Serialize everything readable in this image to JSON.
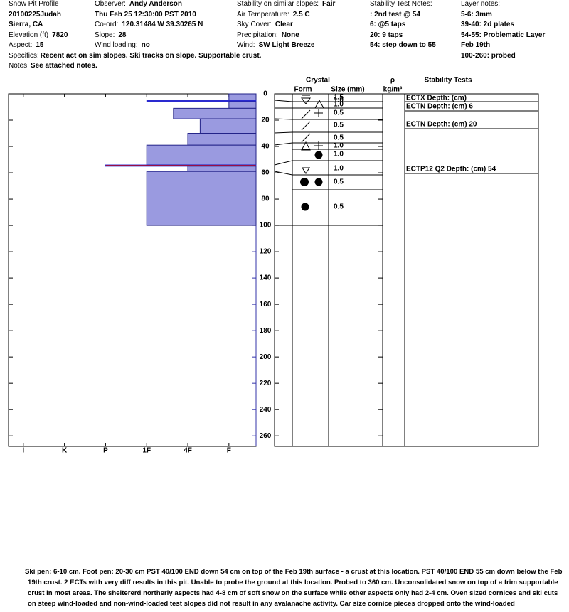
{
  "header": {
    "columns": [
      [
        {
          "label": "Snow Pit Profile"
        },
        {
          "value": "20100225Judah"
        },
        {
          "value": "Sierra, CA"
        },
        {
          "label": "Elevation (ft)",
          "value": "7820"
        },
        {
          "label": "Aspect:",
          "value": "15"
        }
      ],
      [
        {
          "label": "Observer:",
          "value": "Andy Anderson"
        },
        {
          "value": "Thu Feb 25 12:30:00 PST 2010"
        },
        {
          "label": "Co-ord:",
          "value": "120.31484 W 39.30265 N"
        },
        {
          "label": "Slope:",
          "value": "28"
        },
        {
          "label": "Wind loading:",
          "value": "no"
        }
      ],
      [
        {
          "label": "Stability on similar slopes:",
          "value": "Fair"
        },
        {
          "label": "Air Temperature:",
          "value": "2.5 C"
        },
        {
          "label": "Sky Cover:",
          "value": "Clear"
        },
        {
          "label": "Precipitation:",
          "value": "None"
        },
        {
          "label": "Wind:",
          "value": "SW Light Breeze"
        }
      ],
      [
        {
          "label": "Stability Test Notes:"
        },
        {
          "value": ": 2nd test @ 54"
        },
        {
          "value": "6: @5 taps"
        },
        {
          "value": "20: 9 taps"
        },
        {
          "value": "54: step down to 55"
        }
      ],
      [
        {
          "label": "Layer notes:"
        },
        {
          "value": "5-6: 3mm"
        },
        {
          "value": "39-40: 2d plates"
        },
        {
          "value": "54-55: Problematic Layer"
        },
        {
          "value": "Feb 19th"
        },
        {
          "value": "100-260: probed"
        }
      ]
    ],
    "specifics": {
      "label": "Specifics:",
      "value": "Recent act on sim slopes. Ski tracks on slope. Supportable crust."
    },
    "notes": {
      "label": "Notes:",
      "value": "See attached notes."
    }
  },
  "chart_data": {
    "type": "bar",
    "orientation": "horizontal",
    "layers": [
      {
        "top": 0,
        "bottom": 5,
        "hardness": 1.0,
        "color": "#9a9ae0"
      },
      {
        "top": 5,
        "bottom": 6,
        "hardness": 3.0,
        "color": "#2a2ad0"
      },
      {
        "top": 6,
        "bottom": 11,
        "hardness": 1.0,
        "color": "#9a9ae0"
      },
      {
        "top": 11,
        "bottom": 19,
        "hardness": 2.35,
        "color": "#9a9ae0"
      },
      {
        "top": 19,
        "bottom": 30,
        "hardness": 1.7,
        "color": "#9a9ae0"
      },
      {
        "top": 30,
        "bottom": 39,
        "hardness": 2.0,
        "color": "#9a9ae0"
      },
      {
        "top": 39,
        "bottom": 54,
        "hardness": 3.0,
        "color": "#9a9ae0"
      },
      {
        "top": 54,
        "bottom": 55,
        "hardness": 4.0,
        "color": "#d00000"
      },
      {
        "top": 55,
        "bottom": 59,
        "hardness": 2.0,
        "color": "#9a9ae0"
      },
      {
        "top": 59,
        "bottom": 100,
        "hardness": 3.0,
        "color": "#9a9ae0"
      }
    ],
    "xlim": [
      6.36,
      0.34
    ],
    "xticks": [
      {
        "value": 6,
        "label": "I"
      },
      {
        "value": 5,
        "label": "K"
      },
      {
        "value": 4,
        "label": "P"
      },
      {
        "value": 3,
        "label": "1F"
      },
      {
        "value": 2,
        "label": "4F"
      },
      {
        "value": 1,
        "label": "F"
      }
    ],
    "ylim": [
      0,
      268
    ],
    "yticks": [
      0,
      20,
      40,
      60,
      80,
      100,
      120,
      140,
      160,
      180,
      200,
      220,
      240,
      260
    ]
  },
  "crystal_table": {
    "title": "Crystal",
    "form_header": "Form",
    "size_header": "Size (mm)",
    "density_header": "ρ",
    "density_unit": "kg/m³",
    "tests_header": "Stability Tests",
    "sizes": [
      "1.5",
      "1.0",
      "1.0",
      "0.5",
      "0.5",
      "0.5",
      "1.0",
      "1.0",
      "1.0",
      "0.5",
      "0.5"
    ],
    "tests": [
      "ECTX  Depth: (cm)",
      "ECTN  Depth: (cm) 6",
      "ECTN  Depth: (cm) 20",
      "ECTP12 Q2 Depth: (cm) 54"
    ]
  },
  "footer": {
    "text": "Ski pen: 6-10 cm. Foot pen: 20-30 cm PST 40/100 END down 54 cm on top of the Feb 19th surface - a crust at this location. PST 40/100 END 55 cm down below the Feb 19th crust. 2 ECTs with very diff results in this pit. Unable to probe the ground at this location. Probed to 360 cm.  Unconsolidated snow on top of a frim supportable crust in most areas. The sheltererd northerly aspects had 4-8 cm of soft snow on the surface while other aspects only had 2-4 cm. Oven sized cornices and ski cuts on steep wind-loaded and non-wind-loaded test slopes did not result in any avalanache activity. Car size cornice pieces dropped onto the wind-loaded"
  }
}
